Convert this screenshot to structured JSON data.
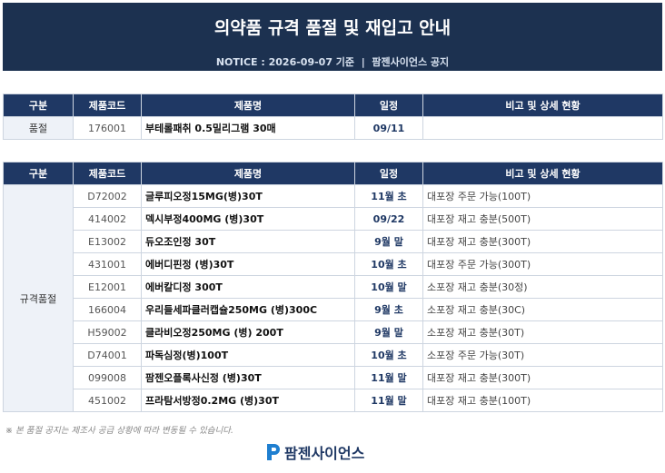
{
  "header": {
    "title": "의약품 규격 품절 및 재입고 안내",
    "notice": "NOTICE : 2026-09-07 기준  |  팜젠사이언스 공지"
  },
  "tables": [
    {
      "columns": [
        "구분",
        "제품코드",
        "제품명",
        "일정",
        "비고 및 상세 현황"
      ],
      "category": "품절",
      "rows": [
        [
          "176001",
          "부테롤패취 0.5밀리그램 30매",
          "09/11",
          ""
        ]
      ]
    },
    {
      "columns": [
        "구분",
        "제품코드",
        "제품명",
        "일정",
        "비고 및 상세 현황"
      ],
      "category": "규격품절",
      "rows": [
        [
          "D72002",
          "글루피오정15MG(병)30T",
          "11월 초",
          "대포장 주문 가능(100T)"
        ],
        [
          "414002",
          "덱시부정400MG (병)30T",
          "09/22",
          "대포장 재고 충분(500T)"
        ],
        [
          "E13002",
          "듀오조인정 30T",
          "9월 말",
          "대포장 재고 충분(300T)"
        ],
        [
          "431001",
          "에버디핀정 (병)30T",
          "10월 초",
          "대포장 주문 가능(300T)"
        ],
        [
          "E12001",
          "에버칼디정 300T",
          "10월 말",
          "소포장 재고 충분(30정)"
        ],
        [
          "166004",
          "우리들세파클러캡슐250MG (병)300C",
          "9월 초",
          "소포장 재고 충분(30C)"
        ],
        [
          "H59002",
          "클라비오정250MG (병) 200T",
          "9월 말",
          "소포장 재고 충분(30T)"
        ],
        [
          "D74001",
          "파독심정(병)100T",
          "10월 초",
          "소포장 주문 가능(30T)"
        ],
        [
          "099008",
          "팜젠오플록사신정 (병)30T",
          "11월 말",
          "대포장 재고 충분(300T)"
        ],
        [
          "451002",
          "프라탐서방정0.2MG (병)30T",
          "11월 말",
          "대포장 재고 충분(100T)"
        ]
      ]
    }
  ],
  "footnote": "※ 본 품절 공지는 제조사 공급 상황에 따라 변동될 수 있습니다.",
  "logo": "팜젠사이언스"
}
